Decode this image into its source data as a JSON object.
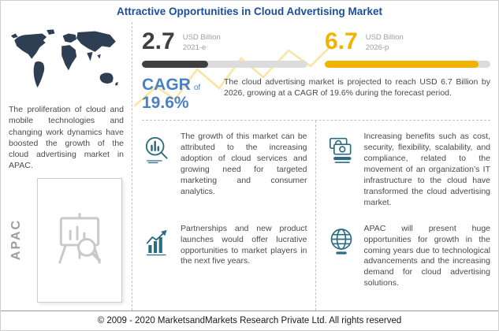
{
  "title": "Attractive Opportunities in Cloud Advertising Market",
  "footer": "© 2009 - 2020 MarketsandMarkets Research Private Ltd. All rights reserved",
  "left": {
    "paragraph": "The proliferation of cloud and mobile technologies and changing work dynamics have boosted the growth of the cloud advertising market in APAC.",
    "region_label": "APAC"
  },
  "stats": {
    "current": {
      "value": "2.7",
      "unit": "USD Billion",
      "year": "2021-e",
      "fill_pct": 40
    },
    "projected": {
      "value": "6.7",
      "unit": "USD Billion",
      "year": "2026-p",
      "fill_pct": 93
    }
  },
  "cagr": {
    "label": "CAGR",
    "of": "of",
    "value": "19.6%"
  },
  "projection_text": "The cloud advertising market is projected to reach USD 6.7 Billion by 2026, growing at a CAGR of 19.6% during the forecast period.",
  "insights": [
    {
      "icon": "analytics-search-icon",
      "text": "The growth of this market can be attributed to the increasing adoption of cloud services and growing need for targeted marketing and consumer analytics."
    },
    {
      "icon": "money-benefits-icon",
      "text": "Increasing benefits such as cost, security, flexibility, scalability, and compliance, related to the movement of an organization’s IT infrastructure to the cloud have transformed the cloud advertising market."
    },
    {
      "icon": "growth-chart-icon",
      "text": "Partnerships and new product launches would offer lucrative opportunities to market players in the next five years."
    },
    {
      "icon": "globe-icon",
      "text": "APAC will present huge opportunities for growth in the coming years due to technological advancements and the increasing demand for cloud advertising solutions."
    }
  ],
  "colors": {
    "title_blue": "#1A4F9C",
    "text_dark": "#4A4A4A",
    "label_gray": "#9E9E9E",
    "bar_dark": "#3F3F3F",
    "bar_track": "#DCDCDC",
    "gold": "#F2B200",
    "cagr_blue": "#4A80C4",
    "icon_teal": "#2B6C80",
    "map_navy": "#2E3F54",
    "border_gray": "#C0C0C0",
    "zigzag_yellow": "#F6D878"
  },
  "chart_data": {
    "type": "bar",
    "categories": [
      "2021-e",
      "2026-p"
    ],
    "values": [
      2.7,
      6.7
    ],
    "unit": "USD Billion",
    "cagr_pct": 19.6,
    "title": "Attractive Opportunities in Cloud Advertising Market",
    "legend_position": "none",
    "grid": false
  }
}
